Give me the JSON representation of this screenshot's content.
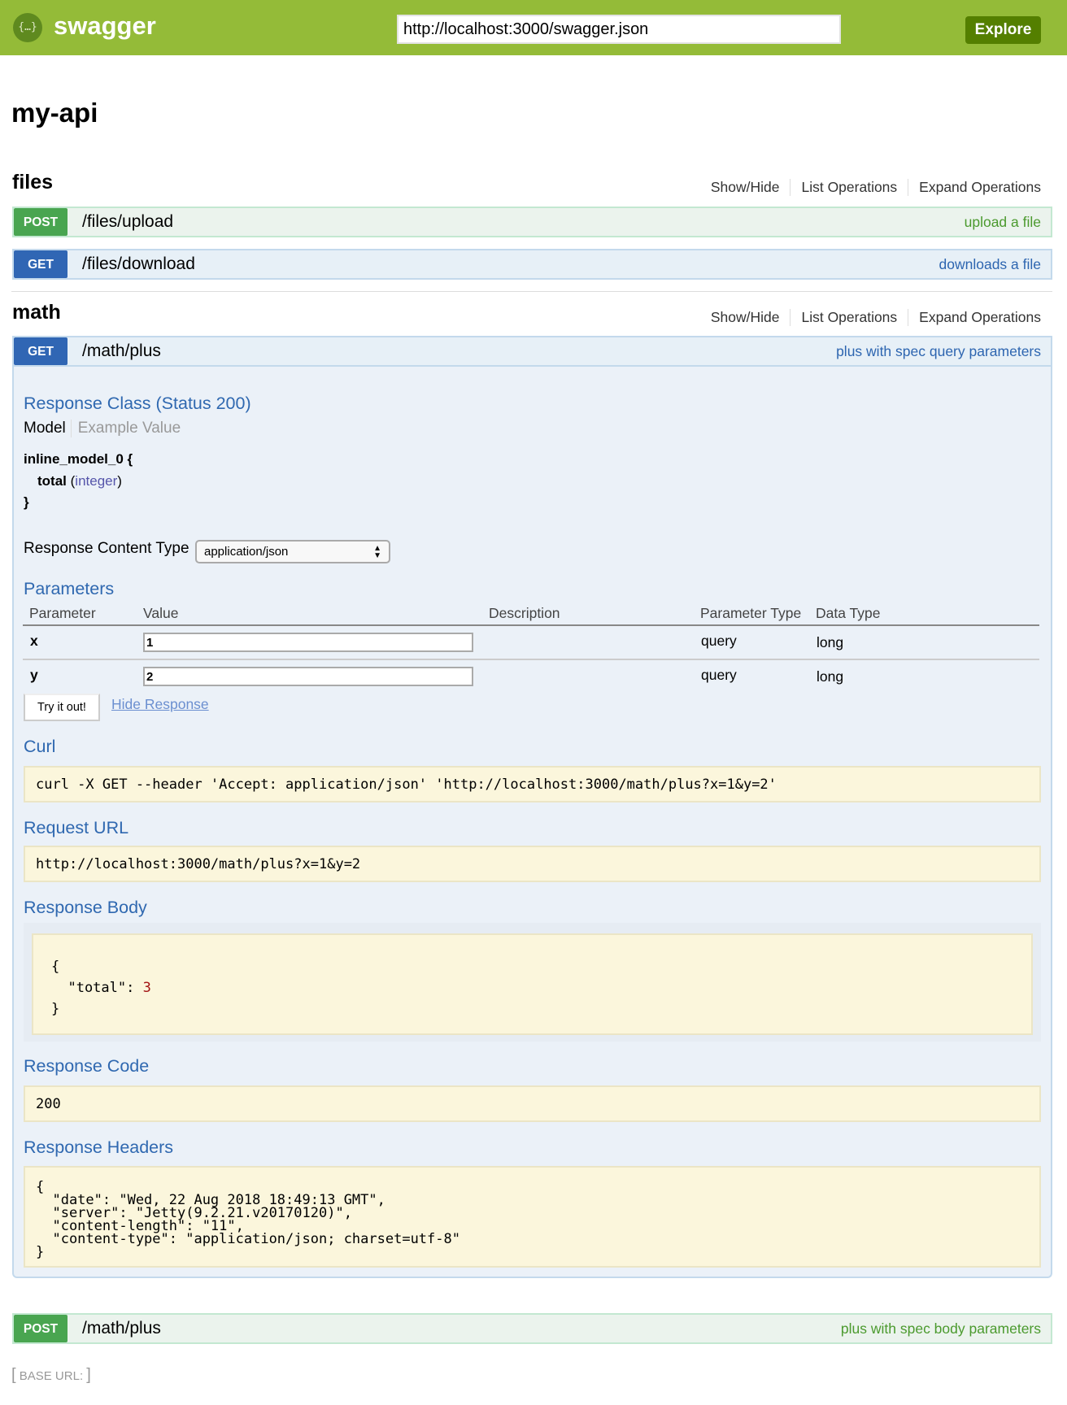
{
  "header": {
    "brand": "swagger",
    "logo_glyph": "{…}",
    "url_value": "http://localhost:3000/swagger.json",
    "explore_label": "Explore",
    "bg_color": "#94bb38"
  },
  "api_title": "my-api",
  "section_links": {
    "show_hide": "Show/Hide",
    "list": "List Operations",
    "expand": "Expand Operations"
  },
  "sections": [
    {
      "name": "files",
      "operations": [
        {
          "method": "POST",
          "path": "/files/upload",
          "summary": "upload a file"
        },
        {
          "method": "GET",
          "path": "/files/download",
          "summary": "downloads a file"
        }
      ]
    },
    {
      "name": "math",
      "operations": [
        {
          "method": "GET",
          "path": "/math/plus",
          "summary": "plus with spec query parameters"
        },
        {
          "method": "POST",
          "path": "/math/plus",
          "summary": "plus with spec body parameters"
        }
      ]
    }
  ],
  "expanded": {
    "response_class": "Response Class (Status 200)",
    "model_tab": "Model",
    "example_tab": "Example Value",
    "model_name": "inline_model_0 {",
    "model_field": "total",
    "model_type_open": "(",
    "model_type": "integer",
    "model_type_close": ")",
    "model_close": "}",
    "content_type_label": "Response Content Type",
    "content_type_value": "application/json",
    "parameters_title": "Parameters",
    "param_headers": [
      "Parameter",
      "Value",
      "Description",
      "Parameter Type",
      "Data Type"
    ],
    "params": [
      {
        "name": "x",
        "value": "1",
        "description": "",
        "param_type": "query",
        "data_type": "long"
      },
      {
        "name": "y",
        "value": "2",
        "description": "",
        "param_type": "query",
        "data_type": "long"
      }
    ],
    "try_label": "Try it out!",
    "hide_label": "Hide Response",
    "curl_title": "Curl",
    "curl": "curl -X GET --header 'Accept: application/json' 'http://localhost:3000/math/plus?x=1&y=2'",
    "request_url_title": "Request URL",
    "request_url": "http://localhost:3000/math/plus?x=1&y=2",
    "response_body_title": "Response Body",
    "body_open": "{",
    "body_key": "  \"total\": ",
    "body_value": "3",
    "body_close": "}",
    "response_code_title": "Response Code",
    "response_code": "200",
    "response_headers_title": "Response Headers",
    "response_headers": "{\n  \"date\": \"Wed, 22 Aug 2018 18:49:13 GMT\",\n  \"server\": \"Jetty(9.2.21.v20170120)\",\n  \"content-length\": \"11\",\n  \"content-type\": \"application/json; charset=utf-8\"\n}"
  },
  "footer": {
    "base_url_label": "BASE URL",
    "base_url_value": ""
  }
}
